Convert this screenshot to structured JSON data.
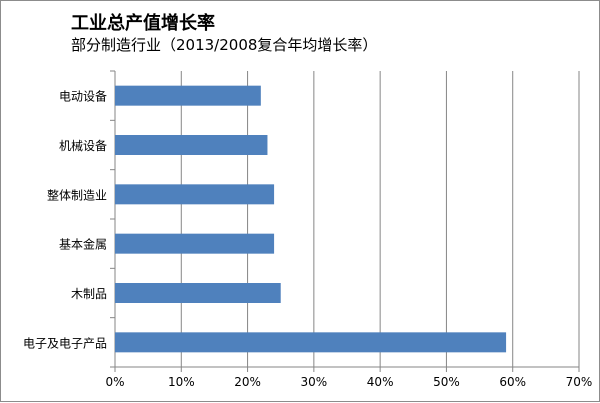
{
  "chart_data": {
    "type": "bar",
    "orientation": "horizontal",
    "title": "工业总产值增长率",
    "subtitle": "部分制造行业（2013/2008复合年均增长率）",
    "categories": [
      "电动设备",
      "机械设备",
      "整体制造业",
      "基本金属",
      "木制品",
      "电子及电子产品"
    ],
    "values": [
      22,
      23,
      24,
      24,
      25,
      59
    ],
    "xlim": [
      0,
      70
    ],
    "xticks": [
      "0%",
      "10%",
      "20%",
      "30%",
      "40%",
      "50%",
      "60%",
      "70%"
    ],
    "unit": "%",
    "grid": "vertical",
    "legend": "none",
    "bar_color": "#4f81bd",
    "grid_color": "#868686"
  }
}
